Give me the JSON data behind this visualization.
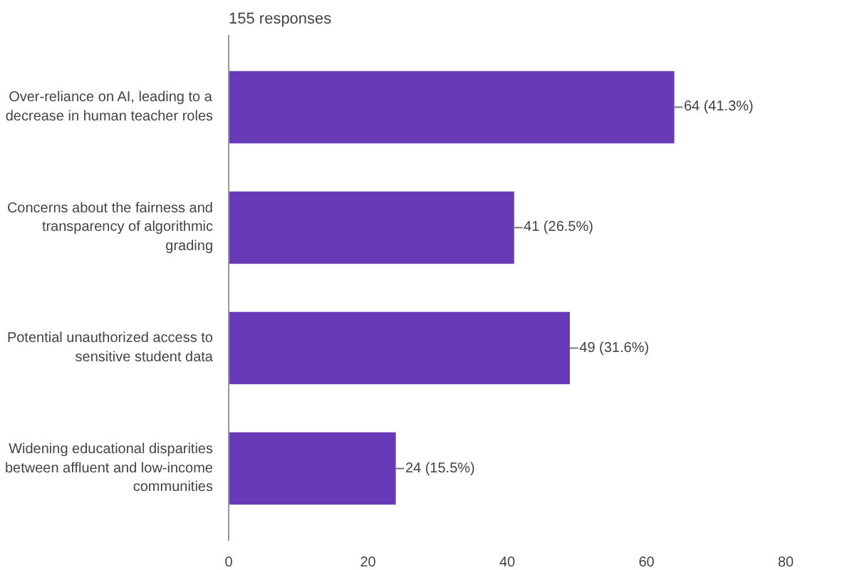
{
  "chart_data": {
    "type": "bar",
    "orientation": "horizontal",
    "subtitle": "155 responses",
    "categories": [
      "Over-reliance on AI, leading to a decrease in human teacher roles",
      "Concerns about the fairness and transparency of algorithmic grading",
      "Potential unauthorized access to sensitive student data",
      "Widening educational disparities between affluent and low-income communities"
    ],
    "values": [
      64,
      41,
      49,
      24
    ],
    "value_labels": [
      "64 (41.3%)",
      "41 (26.5%)",
      "49 (31.6%)",
      "24 (15.5%)"
    ],
    "color": "#673ab7",
    "xlim": [
      0,
      80
    ],
    "xticks": [
      0,
      20,
      40,
      60,
      80
    ],
    "grid": false
  }
}
